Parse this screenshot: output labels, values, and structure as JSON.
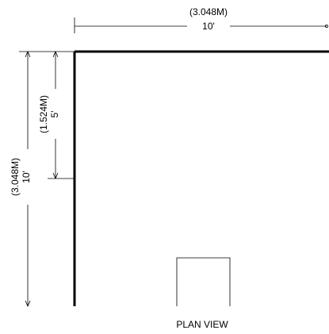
{
  "drawing": {
    "top_dimension": {
      "metric": "(3.048M)",
      "imperial": "10'"
    },
    "left_outer_dimension": {
      "metric": "(3.048M)",
      "imperial": "10'"
    },
    "left_inner_dimension": {
      "metric": "(1.524M)",
      "imperial": "5'"
    },
    "caption": "PLAN VIEW"
  }
}
